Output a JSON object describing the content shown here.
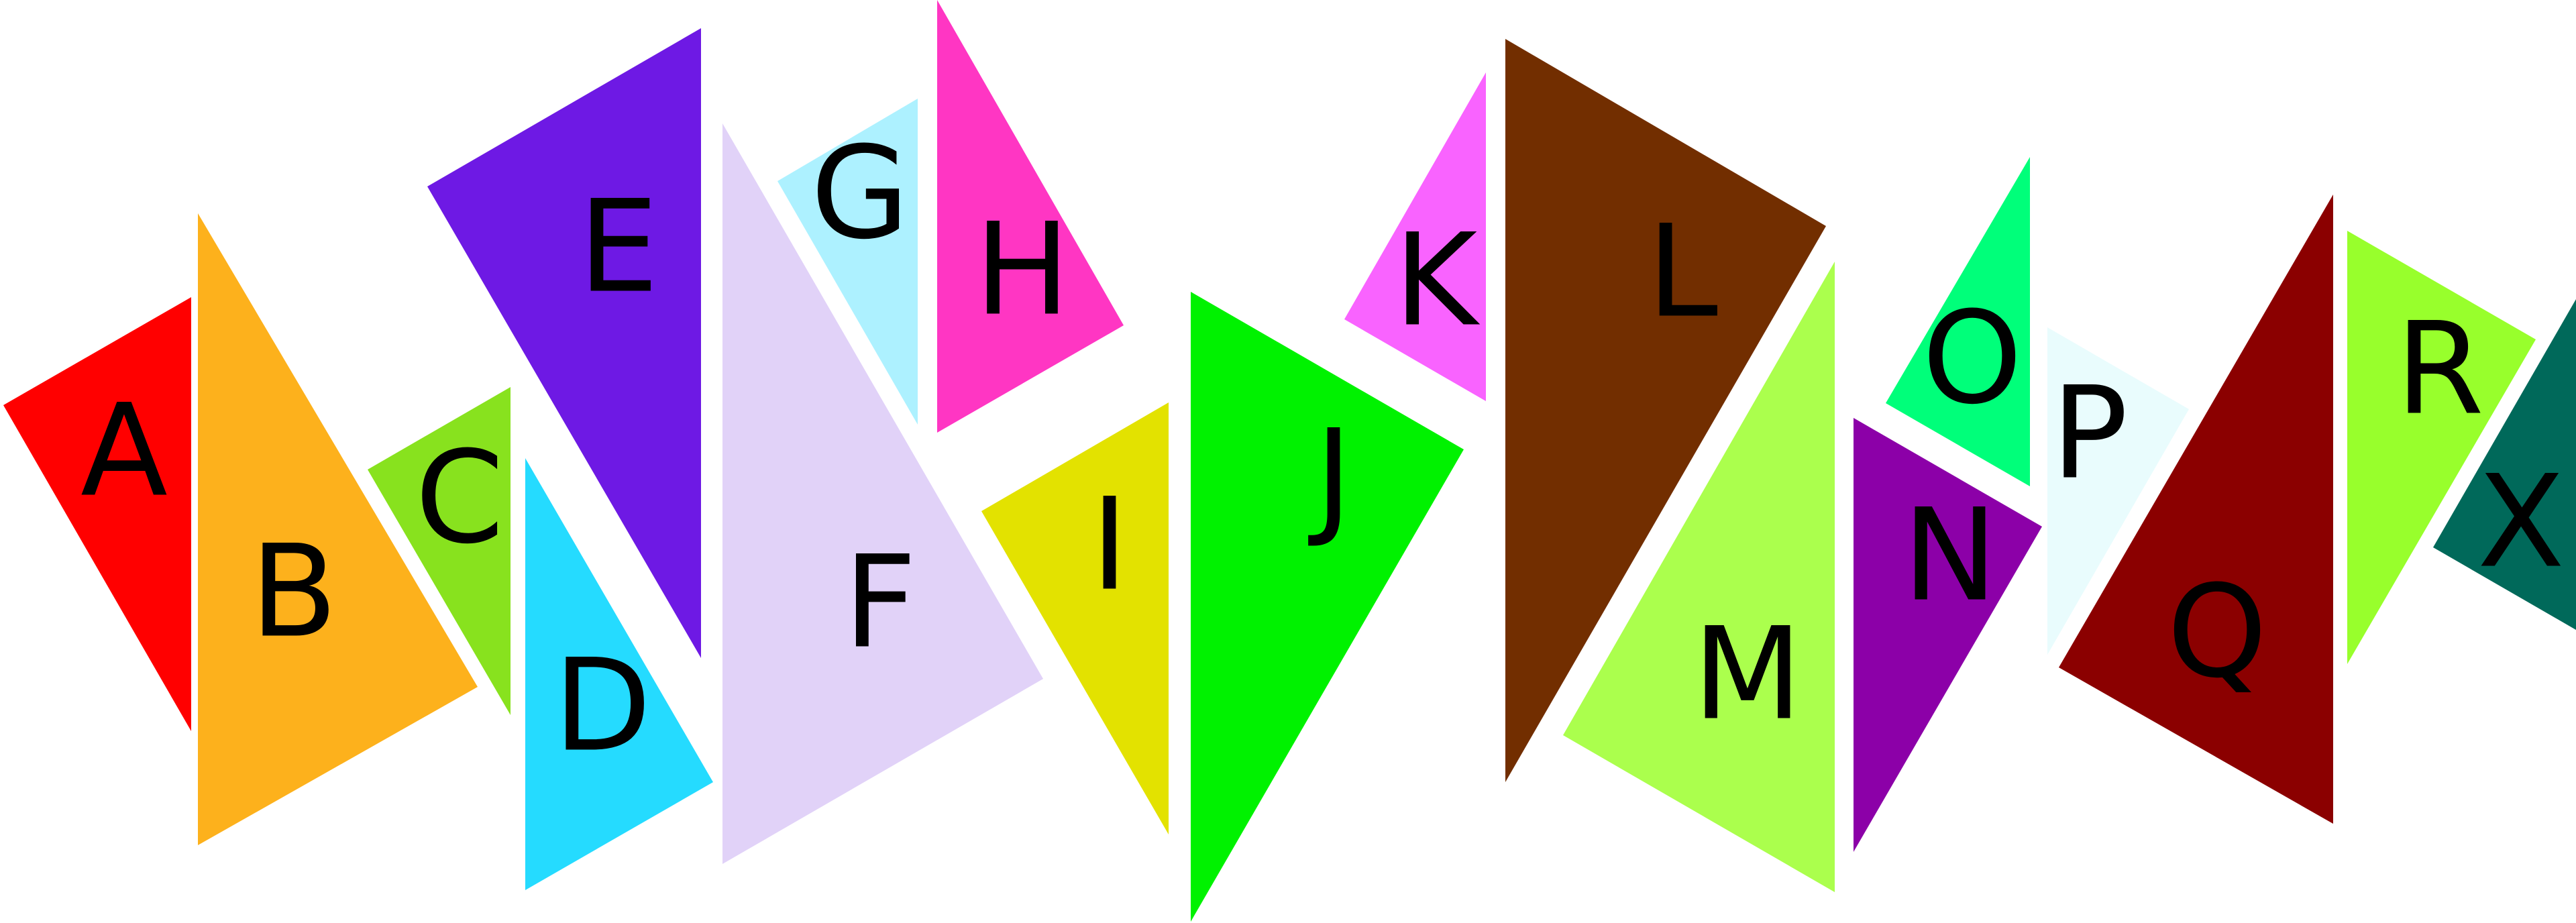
{
  "pieces": [
    {
      "id": "A",
      "label": "A",
      "color": "#FF0000"
    },
    {
      "id": "B",
      "label": "B",
      "color": "#FDB11C"
    },
    {
      "id": "C",
      "label": "C",
      "color": "#88E21E"
    },
    {
      "id": "D",
      "label": "D",
      "color": "#25DBFF"
    },
    {
      "id": "E",
      "label": "E",
      "color": "#6E19E4"
    },
    {
      "id": "F",
      "label": "F",
      "color": "#E1D2F8"
    },
    {
      "id": "G",
      "label": "G",
      "color": "#ADF1FF"
    },
    {
      "id": "H",
      "label": "H",
      "color": "#FF36C3"
    },
    {
      "id": "I",
      "label": "I",
      "color": "#E3E200"
    },
    {
      "id": "J",
      "label": "J",
      "color": "#00F200"
    },
    {
      "id": "K",
      "label": "K",
      "color": "#F963FF"
    },
    {
      "id": "L",
      "label": "L",
      "color": "#722E00"
    },
    {
      "id": "M",
      "label": "M",
      "color": "#ABFF4D"
    },
    {
      "id": "N",
      "label": "N",
      "color": "#8C00A8"
    },
    {
      "id": "O",
      "label": "O",
      "color": "#00FF7A"
    },
    {
      "id": "P",
      "label": "P",
      "color": "#E9FCFD"
    },
    {
      "id": "Q",
      "label": "Q",
      "color": "#8B0000"
    },
    {
      "id": "R",
      "label": "R",
      "color": "#98FF2C"
    },
    {
      "id": "X",
      "label": "X",
      "color": "#00695A"
    }
  ]
}
